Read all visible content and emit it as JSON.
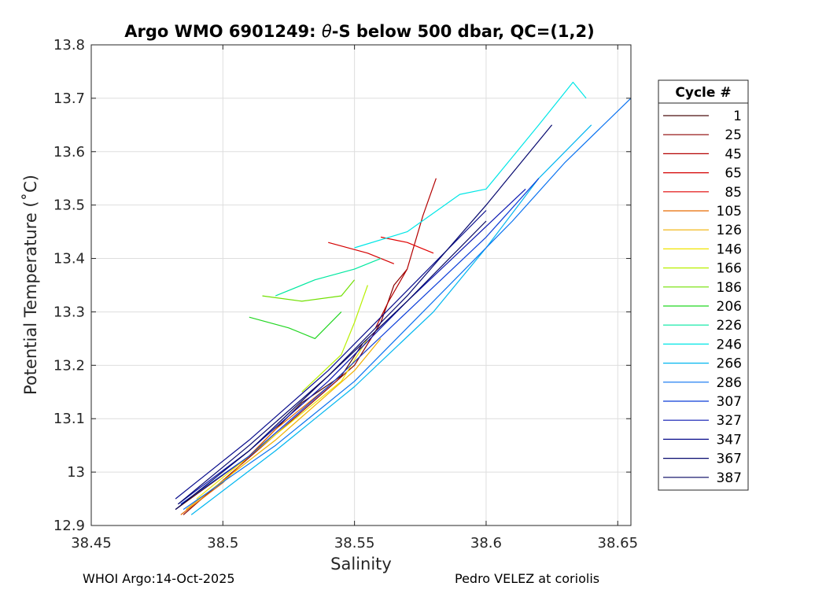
{
  "chart_data": {
    "type": "line",
    "title_prefix": "Argo WMO 6901249: ",
    "title_theta": "θ",
    "title_suffix": "-S below 500 dbar,  QC=(1,2)",
    "xlabel": "Salinity",
    "ylabel": "Potential Temperature (˚C)",
    "xlim": [
      38.45,
      38.655
    ],
    "ylim": [
      12.9,
      13.8
    ],
    "xticks": [
      38.45,
      38.5,
      38.55,
      38.6,
      38.65
    ],
    "xtick_labels": [
      "38.45",
      "38.5",
      "38.55",
      "38.6",
      "38.65"
    ],
    "yticks": [
      12.9,
      13.0,
      13.1,
      13.2,
      13.3,
      13.4,
      13.5,
      13.6,
      13.7,
      13.8
    ],
    "ytick_labels": [
      "12.9",
      "13",
      "13.1",
      "13.2",
      "13.3",
      "13.4",
      "13.5",
      "13.6",
      "13.7",
      "13.8"
    ],
    "grid": true,
    "legend_position": "right-outside",
    "legend_title": "Cycle #",
    "series": [
      {
        "name": "1",
        "color": "#4b0d0d",
        "values": [
          [
            38.482,
            12.93
          ],
          [
            38.51,
            13.03
          ],
          [
            38.53,
            13.13
          ],
          [
            38.545,
            13.18
          ],
          [
            38.553,
            13.24
          ]
        ]
      },
      {
        "name": "25",
        "color": "#8b0000",
        "values": [
          [
            38.485,
            12.92
          ],
          [
            38.52,
            13.07
          ],
          [
            38.55,
            13.2
          ],
          [
            38.56,
            13.28
          ],
          [
            38.565,
            13.35
          ],
          [
            38.57,
            13.38
          ]
        ]
      },
      {
        "name": "45",
        "color": "#b30000",
        "values": [
          [
            38.558,
            13.27
          ],
          [
            38.563,
            13.32
          ],
          [
            38.57,
            13.38
          ],
          [
            38.576,
            13.48
          ],
          [
            38.581,
            13.55
          ]
        ]
      },
      {
        "name": "65",
        "color": "#d40000",
        "values": [
          [
            38.54,
            13.43
          ],
          [
            38.555,
            13.41
          ],
          [
            38.565,
            13.39
          ]
        ]
      },
      {
        "name": "85",
        "color": "#e00000",
        "values": [
          [
            38.56,
            13.44
          ],
          [
            38.57,
            13.43
          ],
          [
            38.58,
            13.41
          ]
        ]
      },
      {
        "name": "105",
        "color": "#e66a00",
        "values": [
          [
            38.484,
            12.92
          ],
          [
            38.5,
            12.98
          ],
          [
            38.52,
            13.08
          ],
          [
            38.54,
            13.16
          ],
          [
            38.555,
            13.23
          ]
        ]
      },
      {
        "name": "126",
        "color": "#f0b000",
        "values": [
          [
            38.486,
            12.93
          ],
          [
            38.52,
            13.06
          ],
          [
            38.55,
            13.19
          ],
          [
            38.56,
            13.25
          ]
        ]
      },
      {
        "name": "146",
        "color": "#f0e400",
        "values": [
          [
            38.49,
            12.95
          ],
          [
            38.52,
            13.07
          ],
          [
            38.545,
            13.17
          ],
          [
            38.555,
            13.25
          ]
        ]
      },
      {
        "name": "166",
        "color": "#b8f000",
        "values": [
          [
            38.53,
            13.15
          ],
          [
            38.545,
            13.22
          ],
          [
            38.55,
            13.28
          ],
          [
            38.555,
            13.35
          ]
        ]
      },
      {
        "name": "186",
        "color": "#70e000",
        "values": [
          [
            38.515,
            13.33
          ],
          [
            38.53,
            13.32
          ],
          [
            38.545,
            13.33
          ],
          [
            38.55,
            13.36
          ]
        ]
      },
      {
        "name": "206",
        "color": "#22d622",
        "values": [
          [
            38.51,
            13.29
          ],
          [
            38.525,
            13.27
          ],
          [
            38.535,
            13.25
          ],
          [
            38.545,
            13.3
          ]
        ]
      },
      {
        "name": "226",
        "color": "#00e8a0",
        "values": [
          [
            38.52,
            13.33
          ],
          [
            38.535,
            13.36
          ],
          [
            38.55,
            13.38
          ],
          [
            38.56,
            13.4
          ]
        ]
      },
      {
        "name": "246",
        "color": "#00e6e6",
        "values": [
          [
            38.55,
            13.42
          ],
          [
            38.57,
            13.45
          ],
          [
            38.59,
            13.52
          ],
          [
            38.6,
            13.53
          ],
          [
            38.62,
            13.65
          ],
          [
            38.633,
            13.73
          ],
          [
            38.638,
            13.7
          ]
        ]
      },
      {
        "name": "266",
        "color": "#00b6f0",
        "values": [
          [
            38.488,
            12.92
          ],
          [
            38.52,
            13.04
          ],
          [
            38.55,
            13.16
          ],
          [
            38.58,
            13.3
          ],
          [
            38.6,
            13.42
          ],
          [
            38.62,
            13.55
          ],
          [
            38.64,
            13.65
          ]
        ]
      },
      {
        "name": "286",
        "color": "#0a72f0",
        "values": [
          [
            38.485,
            12.93
          ],
          [
            38.52,
            13.05
          ],
          [
            38.55,
            13.17
          ],
          [
            38.58,
            13.32
          ],
          [
            38.61,
            13.47
          ],
          [
            38.63,
            13.58
          ],
          [
            38.655,
            13.7
          ]
        ]
      },
      {
        "name": "307",
        "color": "#0a3cd8",
        "values": [
          [
            38.484,
            12.94
          ],
          [
            38.51,
            13.03
          ],
          [
            38.54,
            13.16
          ],
          [
            38.57,
            13.3
          ],
          [
            38.6,
            13.44
          ],
          [
            38.62,
            13.55
          ]
        ]
      },
      {
        "name": "327",
        "color": "#0a16b0",
        "values": [
          [
            38.483,
            12.94
          ],
          [
            38.51,
            13.04
          ],
          [
            38.54,
            13.17
          ],
          [
            38.57,
            13.32
          ],
          [
            38.6,
            13.46
          ],
          [
            38.615,
            13.53
          ]
        ]
      },
      {
        "name": "347",
        "color": "#080c8c",
        "values": [
          [
            38.482,
            12.95
          ],
          [
            38.51,
            13.06
          ],
          [
            38.54,
            13.19
          ],
          [
            38.57,
            13.34
          ],
          [
            38.6,
            13.49
          ]
        ]
      },
      {
        "name": "367",
        "color": "#06086e",
        "values": [
          [
            38.483,
            12.94
          ],
          [
            38.51,
            13.05
          ],
          [
            38.54,
            13.18
          ],
          [
            38.57,
            13.33
          ],
          [
            38.6,
            13.5
          ],
          [
            38.625,
            13.65
          ]
        ]
      },
      {
        "name": "387",
        "color": "#050560",
        "values": [
          [
            38.482,
            12.93
          ],
          [
            38.51,
            13.04
          ],
          [
            38.54,
            13.18
          ],
          [
            38.57,
            13.32
          ],
          [
            38.6,
            13.47
          ]
        ]
      }
    ]
  },
  "footer": {
    "left": "WHOI Argo:14-Oct-2025",
    "right": "Pedro VELEZ at coriolis"
  }
}
